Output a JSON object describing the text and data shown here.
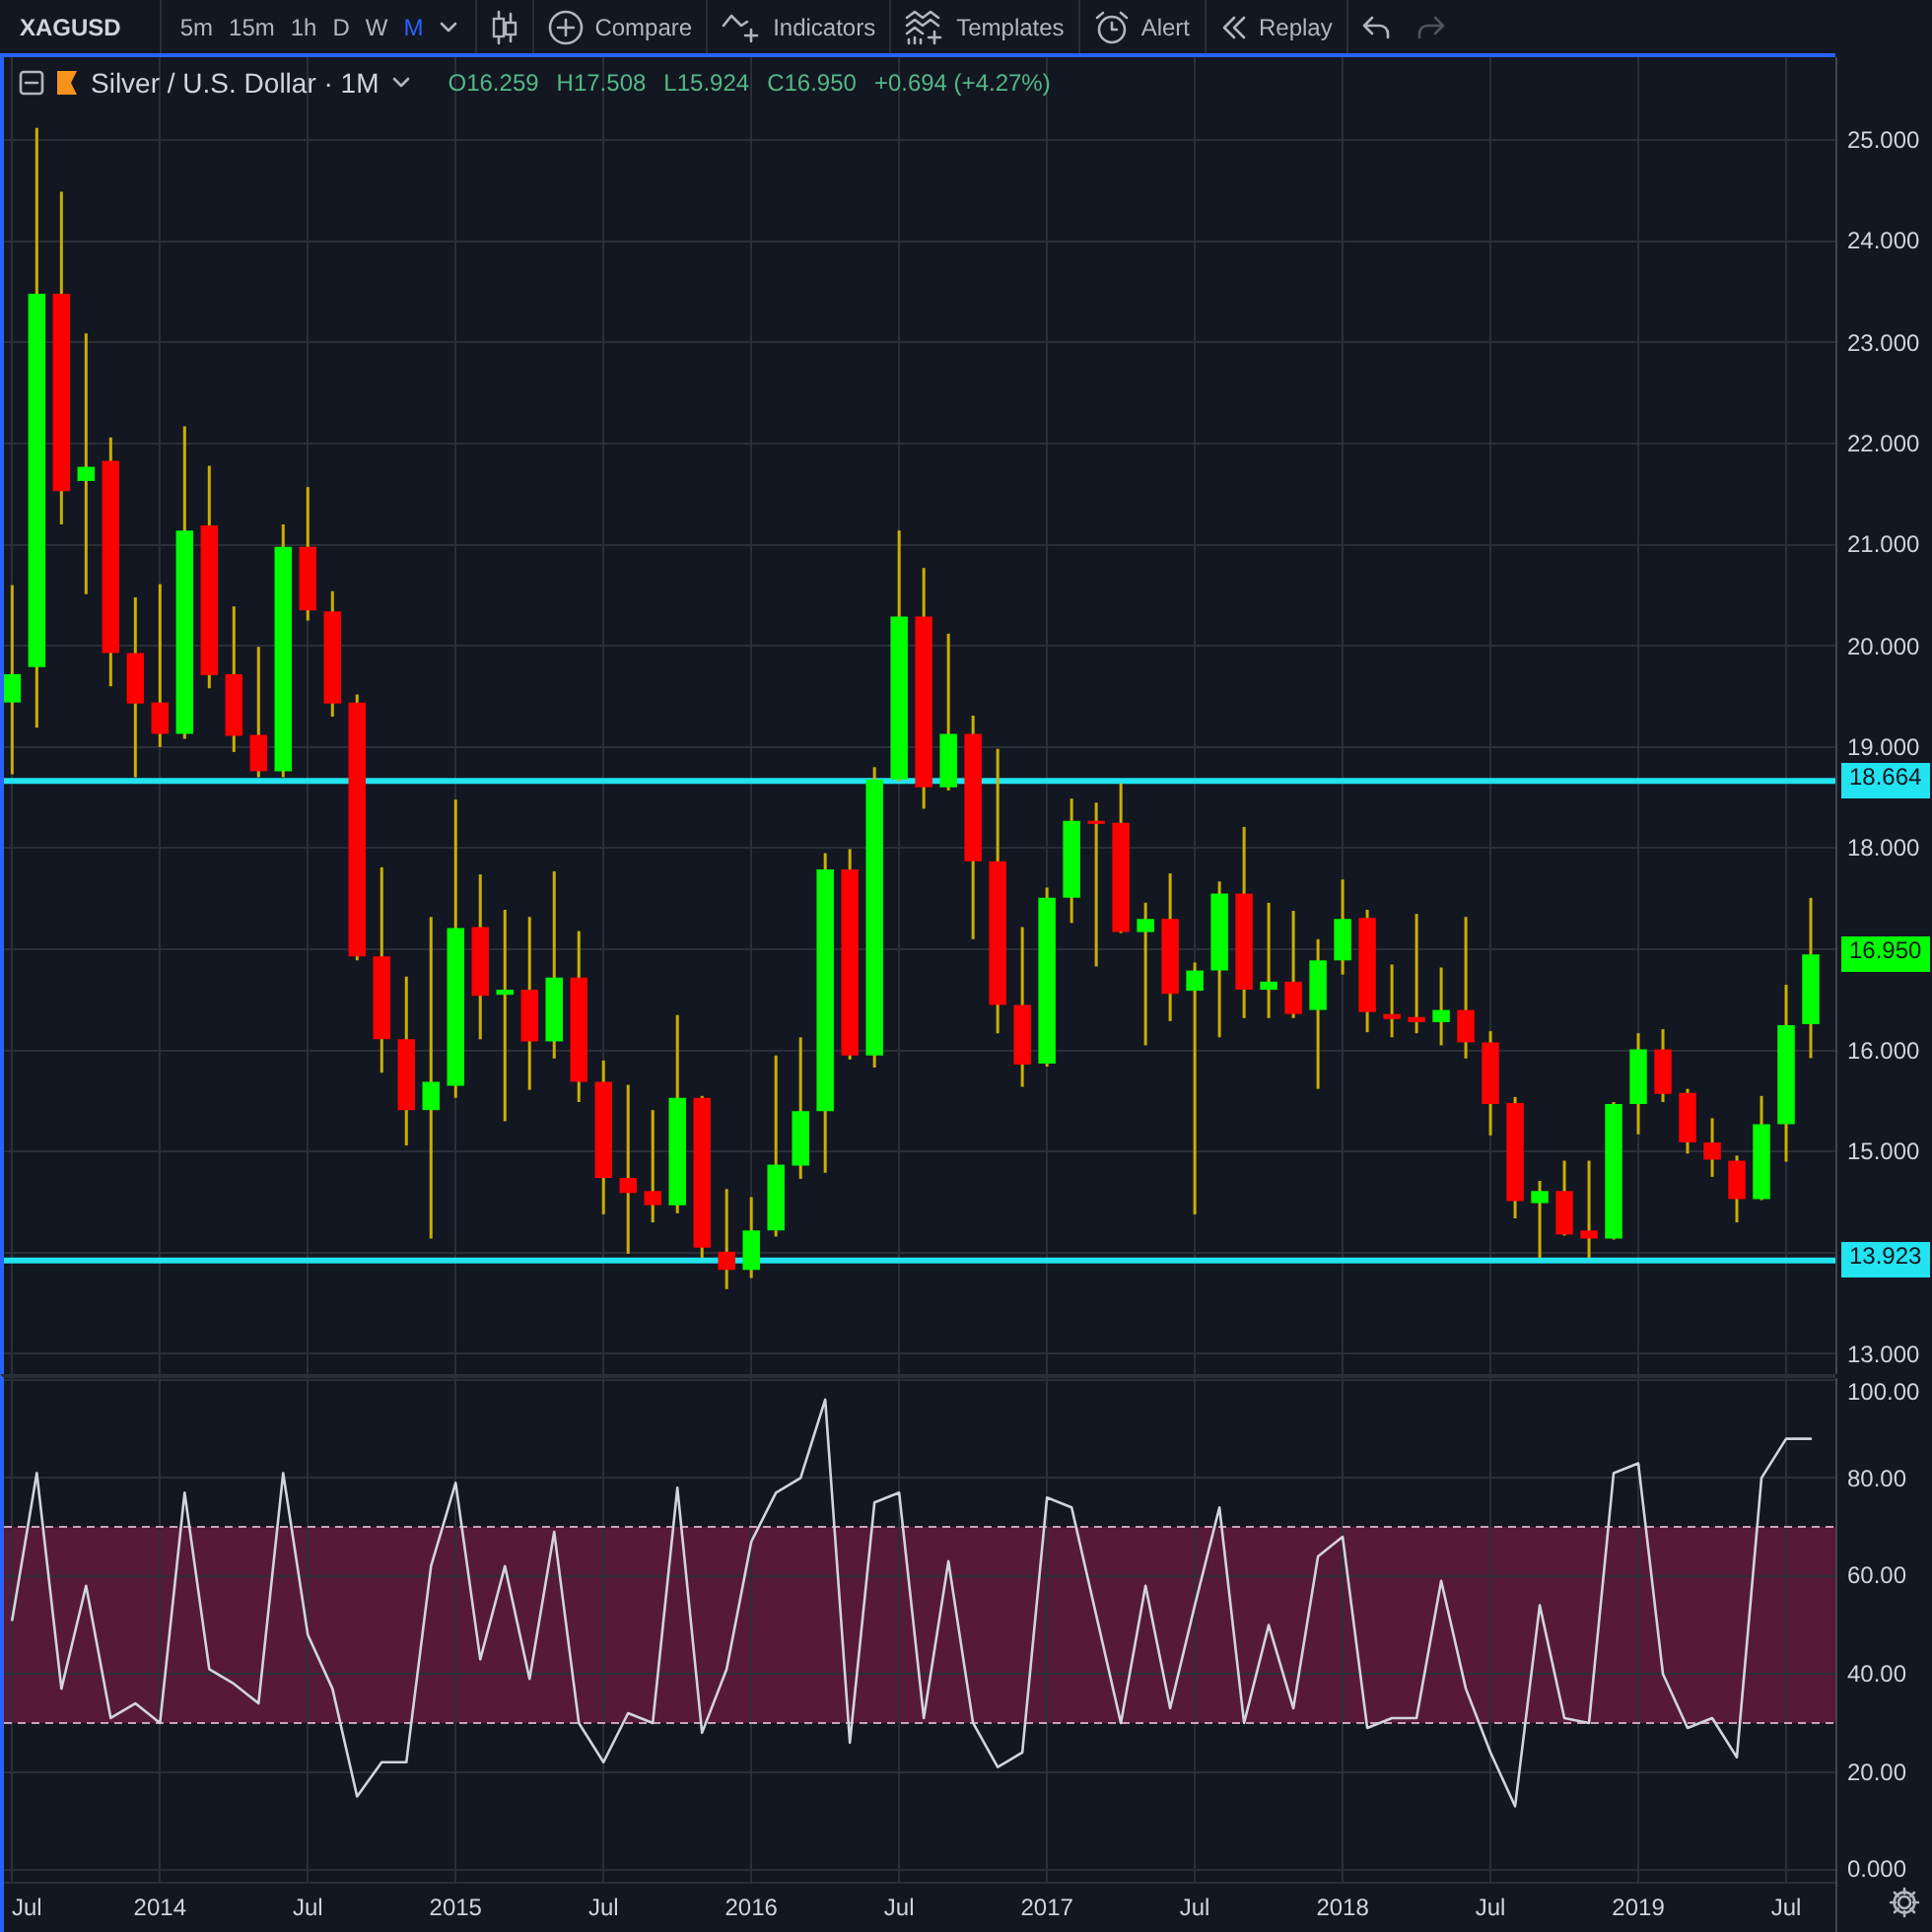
{
  "chart_data": [
    {
      "type": "other",
      "annotations": [
        "XAGUSD",
        "5m",
        "15m",
        "1h",
        "D",
        "W",
        "M",
        "Compare",
        "Indicators",
        "Templates",
        "Alert",
        "Replay"
      ]
    },
    {
      "type": "candlestick",
      "title": "Silver / U.S. Dollar · 1M",
      "annotations": [
        "O16.259",
        "H17.508",
        "L15.924",
        "C16.950",
        "+0.694 (+4.27%)",
        {
          "text": "16.950",
          "x": "2019-08",
          "y": 16.95
        }
      ],
      "x": [
        "2013-07",
        "2013-08",
        "2013-09",
        "2013-10",
        "2013-11",
        "2013-12",
        "2014-01",
        "2014-02",
        "2014-03",
        "2014-04",
        "2014-05",
        "2014-06",
        "2014-07",
        "2014-08",
        "2014-09",
        "2014-10",
        "2014-11",
        "2014-12",
        "2015-01",
        "2015-02",
        "2015-03",
        "2015-04",
        "2015-05",
        "2015-06",
        "2015-07",
        "2015-08",
        "2015-09",
        "2015-10",
        "2015-11",
        "2015-12",
        "2016-01",
        "2016-02",
        "2016-03",
        "2016-04",
        "2016-05",
        "2016-06",
        "2016-07",
        "2016-08",
        "2016-09",
        "2016-10",
        "2016-11",
        "2016-12",
        "2017-01",
        "2017-02",
        "2017-03",
        "2017-04",
        "2017-05",
        "2017-06",
        "2017-07",
        "2017-08",
        "2017-09",
        "2017-10",
        "2017-11",
        "2017-12",
        "2018-01",
        "2018-02",
        "2018-03",
        "2018-04",
        "2018-05",
        "2018-06",
        "2018-07",
        "2018-08",
        "2018-09",
        "2018-10",
        "2018-11",
        "2018-12",
        "2019-01",
        "2019-02",
        "2019-03",
        "2019-04",
        "2019-05",
        "2019-06",
        "2019-07",
        "2019-08"
      ],
      "ohlc": [
        [
          19.44,
          20.6,
          18.73,
          19.72
        ],
        [
          19.79,
          25.12,
          19.19,
          23.48
        ],
        [
          23.48,
          24.49,
          21.2,
          21.53
        ],
        [
          21.63,
          23.09,
          20.51,
          21.77
        ],
        [
          21.83,
          22.06,
          19.6,
          19.93
        ],
        [
          19.93,
          20.48,
          18.7,
          19.43
        ],
        [
          19.44,
          20.61,
          19.0,
          19.13
        ],
        [
          19.13,
          22.17,
          19.08,
          21.14
        ],
        [
          21.19,
          21.78,
          19.58,
          19.71
        ],
        [
          19.72,
          20.39,
          18.95,
          19.11
        ],
        [
          19.12,
          19.99,
          18.7,
          18.76
        ],
        [
          18.76,
          21.2,
          18.7,
          20.98
        ],
        [
          20.98,
          21.57,
          20.25,
          20.35
        ],
        [
          20.34,
          20.54,
          19.3,
          19.43
        ],
        [
          19.44,
          19.52,
          16.89,
          16.93
        ],
        [
          16.93,
          17.81,
          15.78,
          16.11
        ],
        [
          16.11,
          16.73,
          15.06,
          15.41
        ],
        [
          15.41,
          17.32,
          14.14,
          15.69
        ],
        [
          15.65,
          18.48,
          15.53,
          17.21
        ],
        [
          17.22,
          17.74,
          16.11,
          16.54
        ],
        [
          16.55,
          17.39,
          15.3,
          16.6
        ],
        [
          16.6,
          17.32,
          15.61,
          16.09
        ],
        [
          16.09,
          17.77,
          15.92,
          16.72
        ],
        [
          16.72,
          17.18,
          15.49,
          15.69
        ],
        [
          15.69,
          15.9,
          14.38,
          14.74
        ],
        [
          14.74,
          15.66,
          13.99,
          14.59
        ],
        [
          14.61,
          15.41,
          14.3,
          14.47
        ],
        [
          14.47,
          16.35,
          14.39,
          15.53
        ],
        [
          15.53,
          15.55,
          13.95,
          14.05
        ],
        [
          14.01,
          14.63,
          13.64,
          13.83
        ],
        [
          13.83,
          14.55,
          13.75,
          14.22
        ],
        [
          14.22,
          15.95,
          14.16,
          14.87
        ],
        [
          14.86,
          16.13,
          14.73,
          15.4
        ],
        [
          15.4,
          17.95,
          14.79,
          17.79
        ],
        [
          17.79,
          17.99,
          15.91,
          15.95
        ],
        [
          15.95,
          18.8,
          15.83,
          18.68
        ],
        [
          18.68,
          21.14,
          18.66,
          20.29
        ],
        [
          20.29,
          20.77,
          18.39,
          18.6
        ],
        [
          18.6,
          20.12,
          18.57,
          19.13
        ],
        [
          19.13,
          19.31,
          17.1,
          17.87
        ],
        [
          17.87,
          18.98,
          16.17,
          16.45
        ],
        [
          16.45,
          17.22,
          15.64,
          15.86
        ],
        [
          15.87,
          17.61,
          15.84,
          17.51
        ],
        [
          17.51,
          18.49,
          17.26,
          18.27
        ],
        [
          18.27,
          18.45,
          16.83,
          18.24
        ],
        [
          18.25,
          18.64,
          17.16,
          17.17
        ],
        [
          17.17,
          17.46,
          16.05,
          17.3
        ],
        [
          17.3,
          17.75,
          16.29,
          16.56
        ],
        [
          16.59,
          16.87,
          14.38,
          16.79
        ],
        [
          16.79,
          17.67,
          16.13,
          17.55
        ],
        [
          17.55,
          18.21,
          16.32,
          16.6
        ],
        [
          16.6,
          17.46,
          16.32,
          16.68
        ],
        [
          16.68,
          17.38,
          16.32,
          16.36
        ],
        [
          16.4,
          17.1,
          15.62,
          16.89
        ],
        [
          16.89,
          17.69,
          16.75,
          17.3
        ],
        [
          17.31,
          17.39,
          16.18,
          16.38
        ],
        [
          16.36,
          16.85,
          16.13,
          16.31
        ],
        [
          16.33,
          17.35,
          16.17,
          16.28
        ],
        [
          16.28,
          16.82,
          16.05,
          16.4
        ],
        [
          16.4,
          17.32,
          15.92,
          16.08
        ],
        [
          16.08,
          16.19,
          15.16,
          15.47
        ],
        [
          15.48,
          15.54,
          14.34,
          14.51
        ],
        [
          14.49,
          14.71,
          13.95,
          14.61
        ],
        [
          14.61,
          14.91,
          14.17,
          14.18
        ],
        [
          14.22,
          14.91,
          13.95,
          14.14
        ],
        [
          14.14,
          15.49,
          14.13,
          15.47
        ],
        [
          15.47,
          16.17,
          15.17,
          16.01
        ],
        [
          16.01,
          16.21,
          15.49,
          15.57
        ],
        [
          15.58,
          15.62,
          14.98,
          15.09
        ],
        [
          15.09,
          15.33,
          14.75,
          14.92
        ],
        [
          14.91,
          14.96,
          14.3,
          14.53
        ],
        [
          14.53,
          15.55,
          14.52,
          15.27
        ],
        [
          15.27,
          16.65,
          14.9,
          16.25
        ],
        [
          16.259,
          17.508,
          15.924,
          16.95
        ]
      ],
      "color": "#c9b002",
      "colors": [
        "#00ff00",
        "#00ff00",
        "#ff0000",
        "#00ff00",
        "#ff0000",
        "#ff0000",
        "#ff0000",
        "#00ff00",
        "#ff0000",
        "#ff0000",
        "#ff0000",
        "#00ff00",
        "#ff0000",
        "#ff0000",
        "#ff0000",
        "#ff0000",
        "#ff0000",
        "#00ff00",
        "#00ff00",
        "#ff0000",
        "#00ff00",
        "#ff0000",
        "#00ff00",
        "#ff0000",
        "#ff0000",
        "#ff0000",
        "#ff0000",
        "#00ff00",
        "#ff0000",
        "#ff0000",
        "#00ff00",
        "#00ff00",
        "#00ff00",
        "#00ff00",
        "#ff0000",
        "#00ff00",
        "#00ff00",
        "#ff0000",
        "#00ff00",
        "#ff0000",
        "#ff0000",
        "#ff0000",
        "#00ff00",
        "#00ff00",
        "#ff0000",
        "#ff0000",
        "#00ff00",
        "#ff0000",
        "#00ff00",
        "#00ff00",
        "#ff0000",
        "#00ff00",
        "#ff0000",
        "#00ff00",
        "#00ff00",
        "#ff0000",
        "#ff0000",
        "#ff0000",
        "#00ff00",
        "#ff0000",
        "#ff0000",
        "#ff0000",
        "#00ff00",
        "#ff0000",
        "#ff0000",
        "#00ff00",
        "#00ff00",
        "#ff0000",
        "#ff0000",
        "#ff0000",
        "#ff0000",
        "#00ff00",
        "#00ff00",
        "#00ff00"
      ],
      "xlim": [
        "2013-06-21",
        "2019-09-01"
      ],
      "xticks": [
        {
          "value": "2013-07",
          "label": null
        },
        {
          "value": "2014-01",
          "label": null
        },
        {
          "value": "2014-07",
          "label": null
        },
        {
          "value": "2015-01",
          "label": null
        },
        {
          "value": "2015-07",
          "label": null
        },
        {
          "value": "2016-01",
          "label": null
        },
        {
          "value": "2016-07",
          "label": null
        },
        {
          "value": "2017-01",
          "label": null
        },
        {
          "value": "2017-07",
          "label": null
        },
        {
          "value": "2018-01",
          "label": null
        },
        {
          "value": "2018-07",
          "label": null
        },
        {
          "value": "2019-01",
          "label": null
        },
        {
          "value": "2019-07",
          "label": null
        }
      ],
      "ylim": [
        12.8,
        25.82
      ],
      "yticks": [
        {
          "value": 13,
          "label": "13.000"
        },
        {
          "value": 14,
          "label": null
        },
        {
          "value": 15,
          "label": "15.000"
        },
        {
          "value": 16,
          "label": "16.000"
        },
        {
          "value": 17,
          "label": null
        },
        {
          "value": 18,
          "label": "18.000"
        },
        {
          "value": 19,
          "label": "19.000"
        },
        {
          "value": 20,
          "label": "20.000"
        },
        {
          "value": 21,
          "label": "21.000"
        },
        {
          "value": 22,
          "label": "22.000"
        },
        {
          "value": 23,
          "label": "23.000"
        },
        {
          "value": 24,
          "label": "24.000"
        },
        {
          "value": 25,
          "label": "25.000"
        }
      ],
      "tick_labels": "y",
      "grid": true,
      "ref_lines": [
        {
          "axis": "y",
          "value": 18.664,
          "label": "18.664",
          "color": "#22e3f0"
        },
        {
          "axis": "y",
          "value": 13.923,
          "label": "13.923",
          "color": "#22e3f0"
        }
      ]
    },
    {
      "type": "line",
      "x": [
        "2013-07",
        "2013-08",
        "2013-09",
        "2013-10",
        "2013-11",
        "2013-12",
        "2014-01",
        "2014-02",
        "2014-03",
        "2014-04",
        "2014-05",
        "2014-06",
        "2014-07",
        "2014-08",
        "2014-09",
        "2014-10",
        "2014-11",
        "2014-12",
        "2015-01",
        "2015-02",
        "2015-03",
        "2015-04",
        "2015-05",
        "2015-06",
        "2015-07",
        "2015-08",
        "2015-09",
        "2015-10",
        "2015-11",
        "2015-12",
        "2016-01",
        "2016-02",
        "2016-03",
        "2016-04",
        "2016-05",
        "2016-06",
        "2016-07",
        "2016-08",
        "2016-09",
        "2016-10",
        "2016-11",
        "2016-12",
        "2017-01",
        "2017-02",
        "2017-03",
        "2017-04",
        "2017-05",
        "2017-06",
        "2017-07",
        "2017-08",
        "2017-09",
        "2017-10",
        "2017-11",
        "2017-12",
        "2018-01",
        "2018-02",
        "2018-03",
        "2018-04",
        "2018-05",
        "2018-06",
        "2018-07",
        "2018-08",
        "2018-09",
        "2018-10",
        "2018-11",
        "2018-12",
        "2019-01",
        "2019-02",
        "2019-03",
        "2019-04",
        "2019-05",
        "2019-06",
        "2019-07",
        "2019-08"
      ],
      "values": [
        51,
        81,
        37,
        58,
        31,
        34,
        30,
        77,
        41,
        38,
        34,
        81,
        48,
        37,
        15,
        22,
        22,
        62,
        79,
        43,
        62,
        39,
        69,
        30,
        22,
        32,
        30,
        78,
        28,
        41,
        67,
        77,
        80,
        96,
        26,
        75,
        77,
        31,
        63,
        30,
        21,
        24,
        76,
        74,
        52,
        30,
        58,
        33,
        54,
        74,
        30,
        50,
        33,
        64,
        68,
        29,
        31,
        31,
        59,
        37,
        24,
        13,
        54,
        31,
        30,
        81,
        83,
        40,
        29,
        31,
        23,
        80,
        88,
        88
      ],
      "color": "#d1d4dc",
      "xlim": [
        "2013-06-21",
        "2019-09-01"
      ],
      "xticks": [
        {
          "value": "2013-07",
          "label": "Jul"
        },
        {
          "value": "2014-01",
          "label": "2014"
        },
        {
          "value": "2014-07",
          "label": "Jul"
        },
        {
          "value": "2015-01",
          "label": "2015"
        },
        {
          "value": "2015-07",
          "label": "Jul"
        },
        {
          "value": "2016-01",
          "label": "2016"
        },
        {
          "value": "2016-07",
          "label": "Jul"
        },
        {
          "value": "2017-01",
          "label": "2017"
        },
        {
          "value": "2017-07",
          "label": "Jul"
        },
        {
          "value": "2018-01",
          "label": "2018"
        },
        {
          "value": "2018-07",
          "label": "Jul"
        },
        {
          "value": "2019-01",
          "label": "2019"
        },
        {
          "value": "2019-07",
          "label": "Jul"
        }
      ],
      "ylim": [
        -2.6,
        100.4
      ],
      "yticks": [
        {
          "value": 0,
          "label": "0.000"
        },
        {
          "value": 20,
          "label": "20.00"
        },
        {
          "value": 40,
          "label": "40.00"
        },
        {
          "value": 60,
          "label": "60.00"
        },
        {
          "value": 80,
          "label": "80.00"
        },
        {
          "value": 100,
          "label": "100.00"
        }
      ],
      "grid": true,
      "bands": [
        {
          "axis": "y",
          "from": 30,
          "to": 70,
          "color": "#561a38"
        }
      ],
      "ref_lines": [
        {
          "axis": "y",
          "value": 30,
          "color": "#c9a3b6",
          "line_style": "dashed"
        },
        {
          "axis": "y",
          "value": 70,
          "color": "#c9a3b6",
          "line_style": "dashed"
        }
      ]
    }
  ]
}
